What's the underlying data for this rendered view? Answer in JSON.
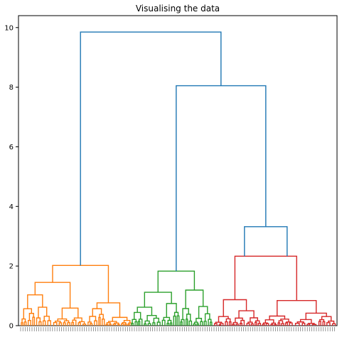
{
  "chart_data": {
    "type": "dendrogram",
    "title": "Visualising the data",
    "xlabel": "",
    "ylabel": "",
    "ylim": [
      0,
      10.4
    ],
    "y_ticks": [
      0,
      2,
      4,
      6,
      8,
      10
    ],
    "grid": false,
    "colors": {
      "above_threshold": "#1f77b4",
      "cluster_1": "#ff7f0e",
      "cluster_2": "#2ca02c",
      "cluster_3": "#d62728"
    },
    "top_merges": [
      {
        "height": 9.85,
        "color": "above_threshold"
      },
      {
        "height": 8.05,
        "color": "above_threshold"
      },
      {
        "height": 3.32,
        "color": "above_threshold"
      }
    ],
    "cluster_merges": [
      {
        "cluster": "cluster_1",
        "height": 2.02
      },
      {
        "cluster": "cluster_2",
        "height": 1.83
      },
      {
        "cluster": "cluster_3",
        "height": 2.33
      }
    ]
  }
}
